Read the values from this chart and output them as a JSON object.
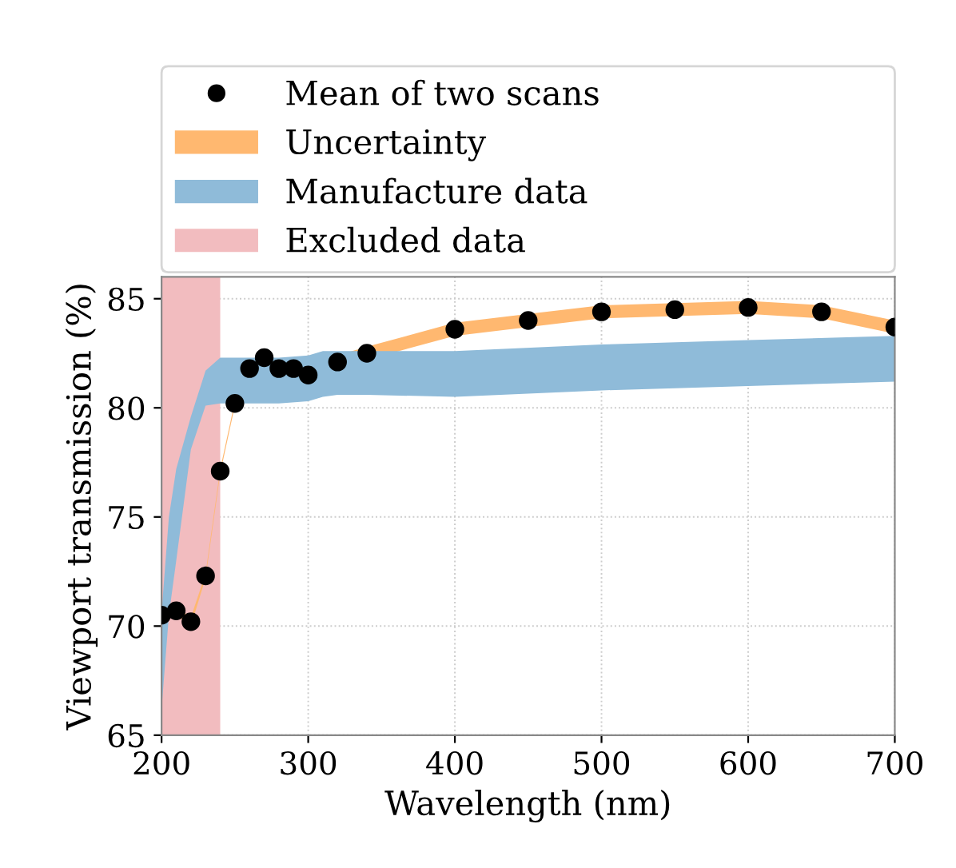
{
  "chart_data": {
    "type": "scatter",
    "xlabel": "Wavelength (nm)",
    "ylabel": "Viewport transmission (%)",
    "xlim": [
      200,
      700
    ],
    "ylim": [
      65,
      86
    ],
    "xticks": [
      200,
      300,
      400,
      500,
      600,
      700
    ],
    "yticks": [
      65,
      70,
      75,
      80,
      85
    ],
    "grid": true,
    "legend": "top",
    "marker": "circle",
    "x": [
      200,
      210,
      220,
      230,
      240,
      250,
      260,
      270,
      280,
      290,
      300,
      320,
      340,
      400,
      450,
      500,
      550,
      600,
      650,
      700
    ],
    "series": [
      {
        "name": "Mean of two scans",
        "color": "#000000",
        "values": [
          70.5,
          70.7,
          70.2,
          72.3,
          77.1,
          80.2,
          81.8,
          82.3,
          81.8,
          81.8,
          81.5,
          82.1,
          82.5,
          83.6,
          84.0,
          84.4,
          84.5,
          84.6,
          84.4,
          83.7
        ]
      },
      {
        "name": "Uncertainty",
        "type": "line",
        "color": "#ffb870",
        "values": [
          null,
          null,
          null,
          null,
          null,
          null,
          null,
          null,
          null,
          null,
          null,
          null,
          null,
          null,
          null,
          null,
          null,
          null,
          null,
          null
        ],
        "lower": [
          70.3,
          70.5,
          70.0,
          72.2,
          77.0,
          80.1,
          81.5,
          82.0,
          81.5,
          81.5,
          81.2,
          81.8,
          82.2,
          83.3,
          83.7,
          84.1,
          84.2,
          84.3,
          84.1,
          83.4
        ],
        "upper": [
          70.7,
          70.9,
          70.4,
          72.4,
          77.2,
          80.3,
          82.1,
          82.6,
          82.1,
          82.1,
          81.8,
          82.4,
          82.8,
          83.9,
          84.3,
          84.7,
          84.8,
          84.9,
          84.7,
          84.0
        ]
      },
      {
        "name": "Manufacture data",
        "type": "line",
        "color": "#8fbbd9",
        "x": [
          200,
          205,
          210,
          220,
          230,
          240,
          260,
          280,
          300,
          310,
          320,
          340,
          400,
          500,
          600,
          700
        ],
        "values": [
          null,
          null,
          null,
          null,
          null,
          null,
          null,
          null,
          null,
          null,
          null,
          null,
          null,
          null,
          null,
          null
        ],
        "lower": [
          66.2,
          70.5,
          73.0,
          78.1,
          80.1,
          80.2,
          80.2,
          80.2,
          80.3,
          80.5,
          80.6,
          80.6,
          80.5,
          80.8,
          81.0,
          81.2
        ],
        "upper": [
          70.6,
          75.0,
          77.2,
          79.6,
          81.7,
          82.3,
          82.3,
          82.3,
          82.4,
          82.6,
          82.6,
          82.6,
          82.6,
          82.9,
          83.1,
          83.3
        ]
      }
    ],
    "bands": [
      {
        "axis": "x",
        "from": 200,
        "to": 240,
        "label": "Excluded data",
        "color": "#f2bcbf"
      }
    ]
  }
}
